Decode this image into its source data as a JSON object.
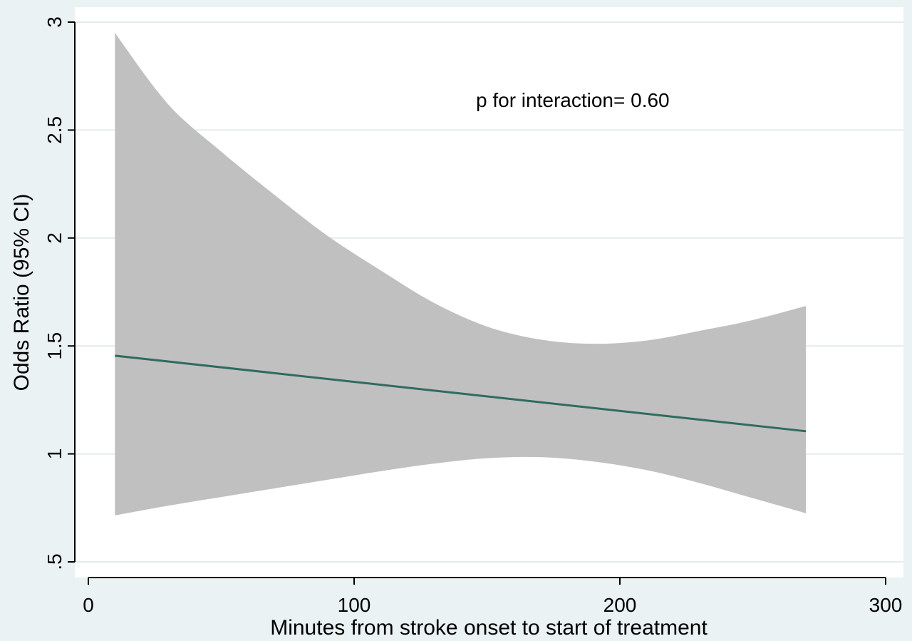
{
  "chart_data": {
    "type": "line",
    "xlabel": "Minutes from stroke onset to start of treatment",
    "ylabel": "Odds Ratio (95% CI)",
    "xlim": [
      0,
      300
    ],
    "ylim": [
      0.5,
      3.0
    ],
    "x_ticks": [
      {
        "value": 0,
        "label": "0"
      },
      {
        "value": 100,
        "label": "100"
      },
      {
        "value": 200,
        "label": "200"
      },
      {
        "value": 300,
        "label": "300"
      }
    ],
    "y_ticks": [
      {
        "value": 0.5,
        "label": ".5"
      },
      {
        "value": 1,
        "label": "1"
      },
      {
        "value": 1.5,
        "label": "1.5"
      },
      {
        "value": 2,
        "label": "2"
      },
      {
        "value": 2.5,
        "label": "2.5"
      },
      {
        "value": 3,
        "label": "3"
      }
    ],
    "grid": true,
    "annotation": "p for interaction= 0.60",
    "line_color": "#2f6b5f",
    "band_color": "#c0c0c0",
    "series": [
      {
        "type": "line",
        "x": [
          10,
          270
        ],
        "y": [
          1.455,
          1.105
        ]
      },
      {
        "type": "area-band",
        "x": [
          10,
          30,
          50,
          70,
          90,
          110,
          130,
          150,
          170,
          190,
          210,
          230,
          250,
          270
        ],
        "upper": [
          2.95,
          2.62,
          2.4,
          2.2,
          2.01,
          1.85,
          1.7,
          1.59,
          1.53,
          1.51,
          1.525,
          1.57,
          1.62,
          1.685
        ],
        "lower": [
          0.715,
          0.76,
          0.8,
          0.84,
          0.88,
          0.92,
          0.955,
          0.98,
          0.985,
          0.965,
          0.925,
          0.865,
          0.795,
          0.725
        ]
      }
    ]
  }
}
